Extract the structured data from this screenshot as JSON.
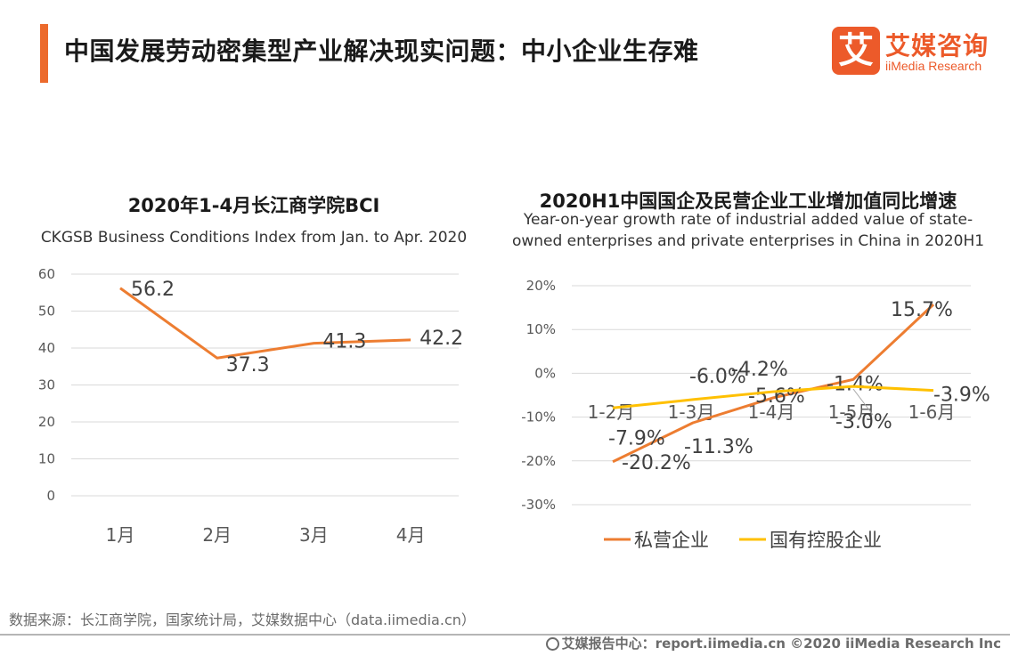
{
  "header": {
    "title": "中国发展劳动密集型产业解决现实问题：中小企业生存难",
    "logo_mark": "艾",
    "logo_cn": "艾媒咨询",
    "logo_en": "iiMedia Research",
    "accent_color": "#ec6a2c"
  },
  "chart_data": [
    {
      "type": "line",
      "title": "2020年1-4月长江商学院BCI",
      "subtitle": "CKGSB Business Conditions Index from Jan. to Apr. 2020",
      "categories": [
        "1月",
        "2月",
        "3月",
        "4月"
      ],
      "series": [
        {
          "name": "",
          "color": "#ed7d31",
          "values": [
            56.2,
            37.3,
            41.3,
            42.2
          ],
          "labels": [
            "56.2",
            "37.3",
            "41.3",
            "42.2"
          ]
        }
      ],
      "yticks": [
        "0",
        "10",
        "20",
        "30",
        "40",
        "50",
        "60"
      ],
      "ylim": [
        0,
        60
      ],
      "grid": true
    },
    {
      "type": "line",
      "title": "2020H1中国国企及民营企业工业增加值同比增速",
      "subtitle_lines": [
        "Year-on-year growth rate of industrial added value of state-",
        "owned enterprises and private enterprises in China in 2020H1"
      ],
      "categories": [
        "1-2月",
        "1-3月",
        "1-4月",
        "1-5月",
        "1-6月"
      ],
      "series": [
        {
          "name": "私营企业",
          "color": "#ed7d31",
          "values": [
            -20.2,
            -11.3,
            -5.6,
            -1.4,
            15.7
          ],
          "labels": [
            "-20.2%",
            "-11.3%",
            "-5.6%",
            "-1.4%",
            "15.7%"
          ]
        },
        {
          "name": "国有控股企业",
          "color": "#ffc000",
          "values": [
            -7.9,
            -6.0,
            -4.2,
            -3.0,
            -3.9
          ],
          "labels": [
            "-7.9%",
            "-6.0%",
            "-4.2%",
            "-3.0%",
            "-3.9%"
          ]
        }
      ],
      "yticks": [
        "-30%",
        "-20%",
        "-10%",
        "0%",
        "10%",
        "20%"
      ],
      "ylim": [
        -30,
        20
      ],
      "grid": true,
      "legend": "bottom"
    }
  ],
  "source": "数据来源：长江商学院，国家统计局，艾媒数据中心（data.iimedia.cn）",
  "footer": "艾媒报告中心：report.iimedia.cn   ©2020  iiMedia Research  Inc"
}
